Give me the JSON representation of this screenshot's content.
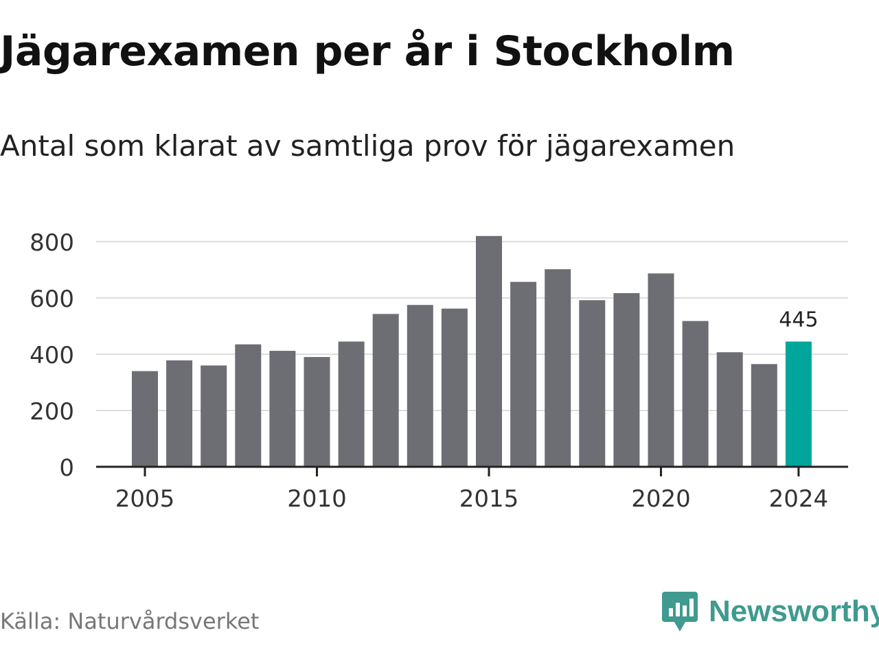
{
  "title": "Jägarexamen per år i Stockholm",
  "subtitle": "Antal som klarat av samtliga prov för jägarexamen",
  "source": "Källa: Naturvårdsverket",
  "brand": {
    "name": "Newsworthy",
    "icon": "newsworthy-logo-icon",
    "color": "#3f9a8f"
  },
  "chart_data": {
    "type": "bar",
    "categories": [
      "2005",
      "2006",
      "2007",
      "2008",
      "2009",
      "2010",
      "2011",
      "2012",
      "2013",
      "2014",
      "2015",
      "2016",
      "2017",
      "2018",
      "2019",
      "2020",
      "2021",
      "2022",
      "2023",
      "2024"
    ],
    "values": [
      340,
      378,
      360,
      435,
      412,
      390,
      445,
      543,
      575,
      562,
      820,
      657,
      702,
      592,
      617,
      687,
      518,
      407,
      365,
      445
    ],
    "xlabel": "",
    "ylabel": "",
    "ylim": [
      0,
      800
    ],
    "yticks": [
      0,
      200,
      400,
      600,
      800
    ],
    "xticks": [
      "2005",
      "2010",
      "2015",
      "2020",
      "2024"
    ],
    "highlight": {
      "category": "2024",
      "label": "445",
      "color": "#00a69c"
    },
    "bar_color": "#6d6d74",
    "grid": true
  }
}
